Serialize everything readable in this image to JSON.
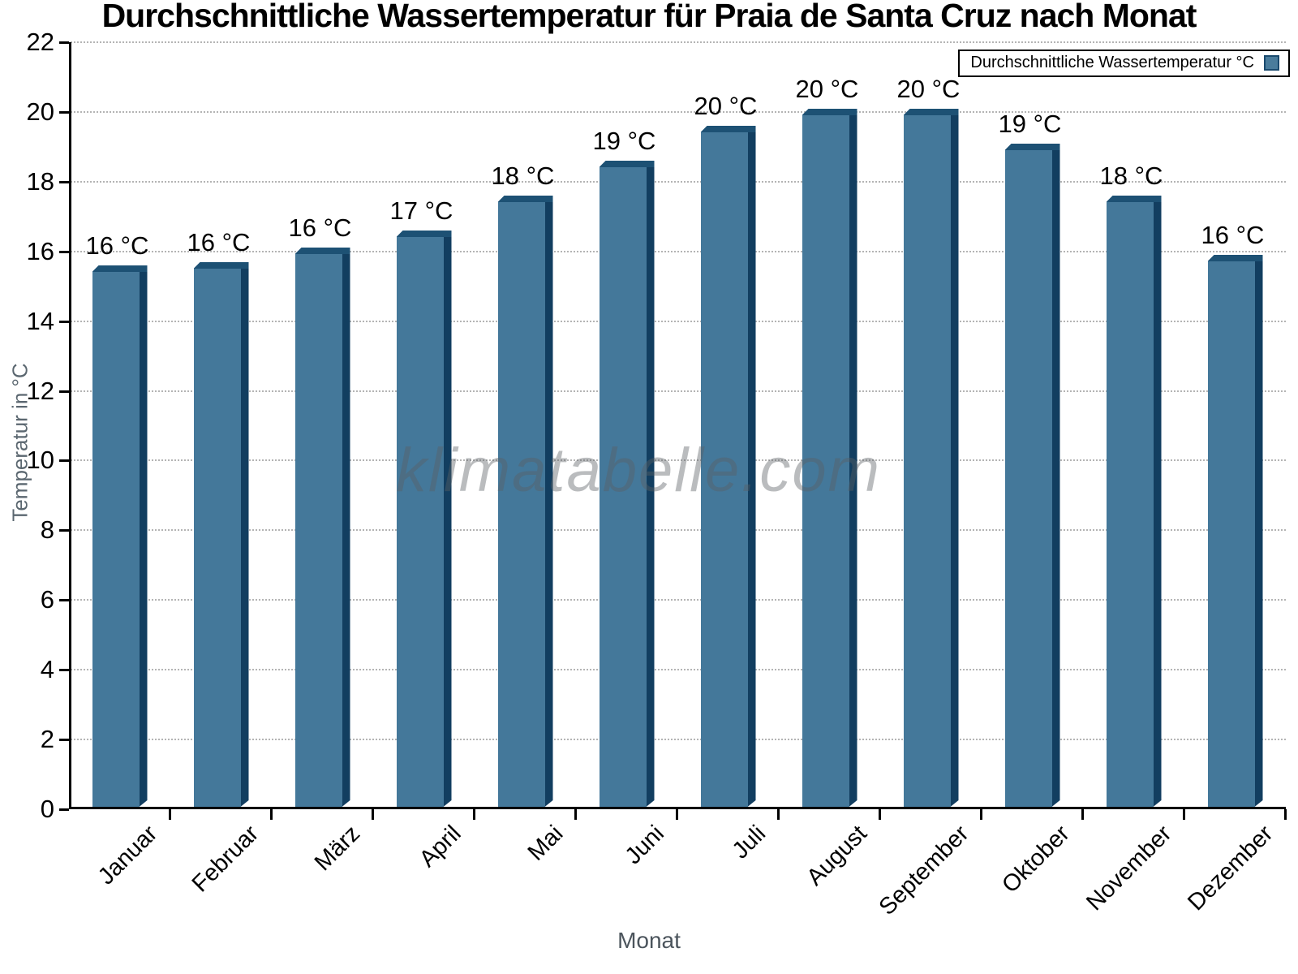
{
  "watermark": "klimatabelle.com",
  "legend": {
    "label": "Durchschnittliche Wassertemperatur °C"
  },
  "colors": {
    "bar_face": "#44789a",
    "bar_side": "#123e60",
    "bar_top": "#1d5174",
    "legend_swatch_fill": "#4a7c9c",
    "legend_swatch_border": "#1a4a6e",
    "grid": "#b4b4b4",
    "axis": "#000000",
    "axis_title": "#5b6770"
  },
  "chart_data": {
    "type": "bar",
    "title": "Durchschnittliche Wassertemperatur für Praia de Santa Cruz nach Monat",
    "xlabel": "Monat",
    "ylabel": "Temperatur in °C",
    "ylim": [
      0,
      22
    ],
    "ytick_step": 2,
    "yticks": [
      0,
      2,
      4,
      6,
      8,
      10,
      12,
      14,
      16,
      18,
      20,
      22
    ],
    "grid": "dotted-horizontal",
    "legend_position": "top-right",
    "legend_label": "Durchschnittliche Wassertemperatur °C",
    "categories": [
      "Januar",
      "Februar",
      "März",
      "April",
      "Mai",
      "Juni",
      "Juli",
      "August",
      "September",
      "Oktober",
      "November",
      "Dezember"
    ],
    "values": [
      15.6,
      15.7,
      16.1,
      16.6,
      17.6,
      18.6,
      19.6,
      20.1,
      20.1,
      19.1,
      17.6,
      15.9
    ],
    "bar_labels": [
      "16 °C",
      "16 °C",
      "16 °C",
      "17 °C",
      "18 °C",
      "19 °C",
      "20 °C",
      "20 °C",
      "20 °C",
      "19 °C",
      "18 °C",
      "16 °C"
    ]
  }
}
